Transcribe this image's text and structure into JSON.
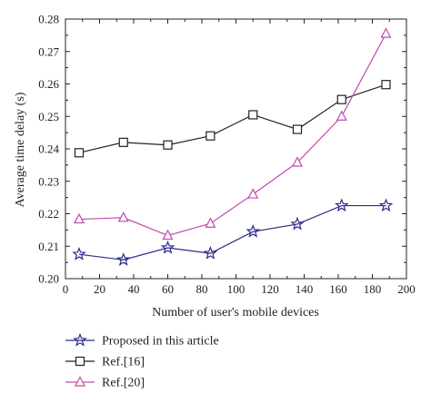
{
  "chart_data": {
    "type": "line",
    "xlabel": "Number of user's mobile devices",
    "ylabel": "Average time delay (s)",
    "xlim": [
      0,
      200
    ],
    "ylim": [
      0.2,
      0.28
    ],
    "xticks": [
      "0",
      "20",
      "40",
      "60",
      "80",
      "100",
      "120",
      "140",
      "160",
      "180",
      "200"
    ],
    "yticks": [
      "0.20",
      "0.21",
      "0.22",
      "0.23",
      "0.24",
      "0.25",
      "0.26",
      "0.27",
      "0.28"
    ],
    "grid": false,
    "legend_position": "bottom-left",
    "x": [
      8,
      34,
      60,
      85,
      110,
      136,
      162,
      188
    ],
    "series": [
      {
        "name": "Proposed in this article",
        "marker": "star",
        "color": "#2b2b8c",
        "values": [
          0.2075,
          0.2058,
          0.2095,
          0.2078,
          0.2145,
          0.2168,
          0.2225,
          0.2225
        ]
      },
      {
        "name": "Ref.[16]",
        "marker": "square",
        "color": "#222222",
        "values": [
          0.2388,
          0.242,
          0.2412,
          0.244,
          0.2505,
          0.246,
          0.2552,
          0.2598
        ]
      },
      {
        "name": "Ref.[20]",
        "marker": "triangle",
        "color": "#c04bb0",
        "values": [
          0.2183,
          0.2188,
          0.2133,
          0.217,
          0.226,
          0.2358,
          0.25,
          0.2755
        ]
      }
    ]
  }
}
